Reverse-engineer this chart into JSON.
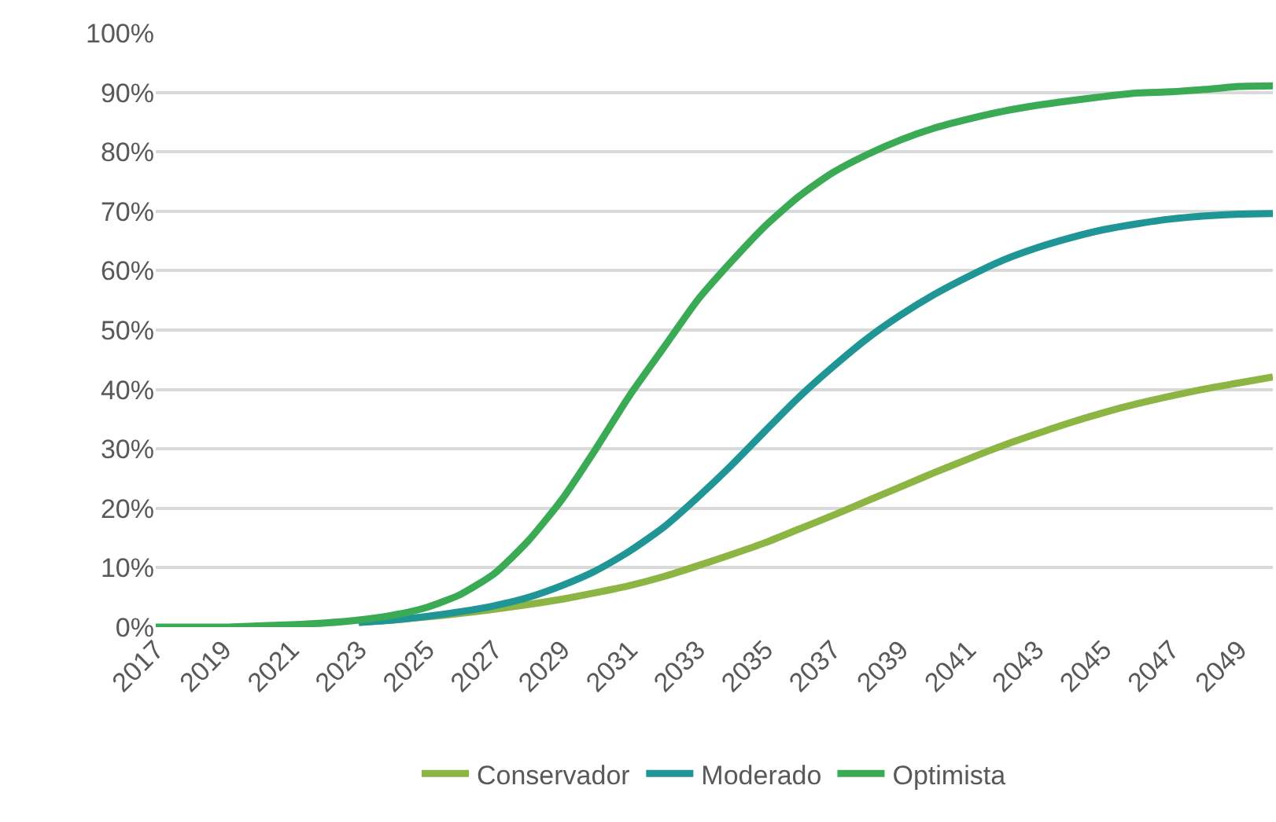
{
  "chart_data": {
    "type": "line",
    "categories": [
      "2017",
      null,
      "2019",
      null,
      "2021",
      null,
      "2023",
      null,
      "2025",
      null,
      "2027",
      null,
      "2029",
      null,
      "2031",
      null,
      "2033",
      null,
      "2035",
      null,
      "2037",
      null,
      "2039",
      null,
      "2041",
      null,
      "2043",
      null,
      "2045",
      null,
      "2047",
      null,
      "2049",
      null
    ],
    "series": [
      {
        "name": "Conservador",
        "color": "#8db543",
        "values": [
          null,
          null,
          null,
          null,
          null,
          null,
          0.8,
          1.2,
          1.7,
          2.3,
          3,
          3.8,
          4.7,
          5.8,
          7,
          8.5,
          10.3,
          12.2,
          14.2,
          16.5,
          18.8,
          21.2,
          23.6,
          26,
          28.3,
          30.5,
          32.5,
          34.4,
          36.1,
          37.6,
          38.9,
          40.1,
          41.1,
          42.1
        ]
      },
      {
        "name": "Moderado",
        "color": "#1f9695",
        "values": [
          null,
          null,
          null,
          null,
          null,
          null,
          0.8,
          1.2,
          1.8,
          2.6,
          3.6,
          5,
          7,
          9.5,
          12.8,
          16.8,
          21.8,
          27.2,
          33,
          38.7,
          43.8,
          48.5,
          52.5,
          56,
          59,
          61.7,
          63.8,
          65.5,
          66.9,
          67.9,
          68.7,
          69.2,
          69.5,
          69.6
        ]
      },
      {
        "name": "Optimista",
        "color": "#3aab54",
        "values": [
          0,
          0,
          0,
          0.2,
          0.4,
          0.7,
          1.2,
          2,
          3.3,
          5.5,
          9,
          14.5,
          21.5,
          30,
          39,
          47,
          55,
          61.5,
          67.5,
          72.5,
          76.5,
          79.5,
          82,
          84,
          85.5,
          86.8,
          87.8,
          88.6,
          89.3,
          89.9,
          90.1,
          90.5,
          91,
          91.1
        ]
      }
    ],
    "ylim": [
      0,
      100
    ],
    "yticks": [
      {
        "value": 0,
        "label": "0%"
      },
      {
        "value": 10,
        "label": "10%"
      },
      {
        "value": 20,
        "label": "20%"
      },
      {
        "value": 30,
        "label": "30%"
      },
      {
        "value": 40,
        "label": "40%"
      },
      {
        "value": 50,
        "label": "50%"
      },
      {
        "value": 60,
        "label": "60%"
      },
      {
        "value": 70,
        "label": "70%"
      },
      {
        "value": 80,
        "label": "80%"
      },
      {
        "value": 90,
        "label": "90%"
      },
      {
        "value": 100,
        "label": "100%"
      }
    ],
    "grid": "y",
    "legend": "bottom",
    "marker": "none",
    "line_style": "solid"
  }
}
